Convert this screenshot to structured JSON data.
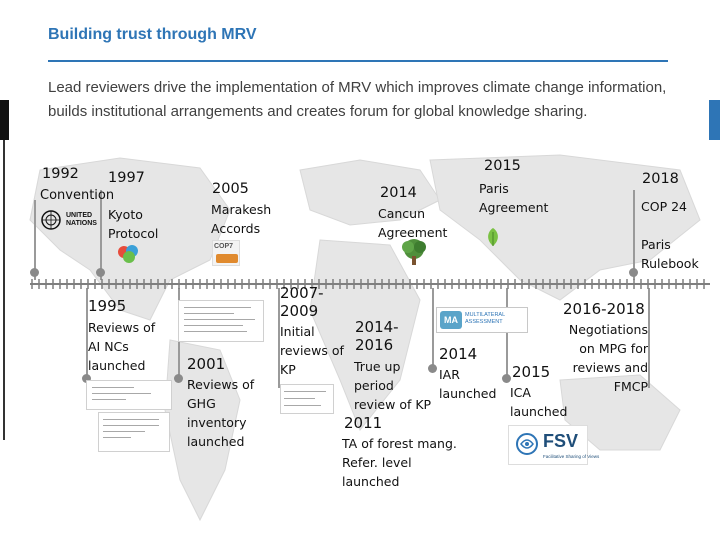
{
  "header": {
    "title": "Building trust through MRV",
    "intro": "Lead reviewers drive the implementation of MRV which improves climate change information, builds institutional arrangements and creates forum for global knowledge sharing."
  },
  "logos": {
    "un": "UNITED NATIONS",
    "cop7": "COP7",
    "ma_badge": "MA",
    "ma_text": "MULTILATERAL ASSESSMENT",
    "fsv": "FSV",
    "fsv_sub": "Facilitative Sharing of Views"
  },
  "top_events": [
    {
      "year": "1992",
      "label": "Convention"
    },
    {
      "year": "1997",
      "label": "Kyoto\nProtocol"
    },
    {
      "year": "2005",
      "label": "Marakesh\nAccords"
    },
    {
      "year": "2014",
      "label": "Cancun\nAgreement"
    },
    {
      "year": "2015",
      "label": "Paris\nAgreement"
    },
    {
      "year": "2018",
      "label": "COP 24\n\nParis\nRulebook"
    }
  ],
  "bottom_events": [
    {
      "year": "1995",
      "label": "Reviews of\nAI NCs\nlaunched"
    },
    {
      "year": "2001",
      "label": "Reviews of\nGHG\ninventory\nlaunched"
    },
    {
      "year": "2007-\n2009",
      "label": "Initial\nreviews of\nKP"
    },
    {
      "year": "2014-\n2016",
      "label": "True up\nperiod\nreview of KP"
    },
    {
      "year": "2011",
      "label": "TA of forest mang.\nRefer. level\nlaunched"
    },
    {
      "year": "2014",
      "label": "IAR\nlaunched"
    },
    {
      "year": "2015",
      "label": "ICA\nlaunched"
    },
    {
      "year": "2016-2018",
      "label": "Negotiations\non MPG for\nreviews and\nFMCP"
    }
  ]
}
